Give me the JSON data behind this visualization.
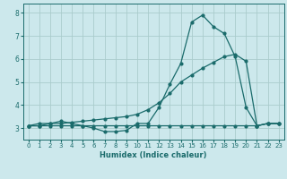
{
  "xlabel": "Humidex (Indice chaleur)",
  "background_color": "#cce8ec",
  "grid_color": "#aacccc",
  "line_color": "#1a6b6b",
  "xlim": [
    -0.5,
    23.5
  ],
  "ylim": [
    2.5,
    8.4
  ],
  "xticks": [
    0,
    1,
    2,
    3,
    4,
    5,
    6,
    7,
    8,
    9,
    10,
    11,
    12,
    13,
    14,
    15,
    16,
    17,
    18,
    19,
    20,
    21,
    22,
    23
  ],
  "yticks": [
    3,
    4,
    5,
    6,
    7,
    8
  ],
  "hours": [
    0,
    1,
    2,
    3,
    4,
    5,
    6,
    7,
    8,
    9,
    10,
    11,
    12,
    13,
    14,
    15,
    16,
    17,
    18,
    19,
    20,
    21,
    22,
    23
  ],
  "series1": [
    3.1,
    3.2,
    3.2,
    3.3,
    3.2,
    3.1,
    3.0,
    2.85,
    2.85,
    2.9,
    3.2,
    3.2,
    3.9,
    4.9,
    5.8,
    7.6,
    7.9,
    7.4,
    7.1,
    6.1,
    3.9,
    3.1,
    3.2,
    3.2
  ],
  "series2": [
    3.1,
    3.1,
    3.1,
    3.1,
    3.1,
    3.1,
    3.1,
    3.1,
    3.1,
    3.1,
    3.1,
    3.1,
    3.1,
    3.1,
    3.1,
    3.1,
    3.1,
    3.1,
    3.1,
    3.1,
    3.1,
    3.1,
    3.2,
    3.2
  ],
  "series3": [
    3.1,
    3.1,
    3.2,
    3.2,
    3.25,
    3.3,
    3.35,
    3.4,
    3.45,
    3.5,
    3.6,
    3.8,
    4.1,
    4.5,
    5.0,
    5.3,
    5.6,
    5.85,
    6.1,
    6.2,
    5.9,
    3.1,
    3.2,
    3.2
  ]
}
